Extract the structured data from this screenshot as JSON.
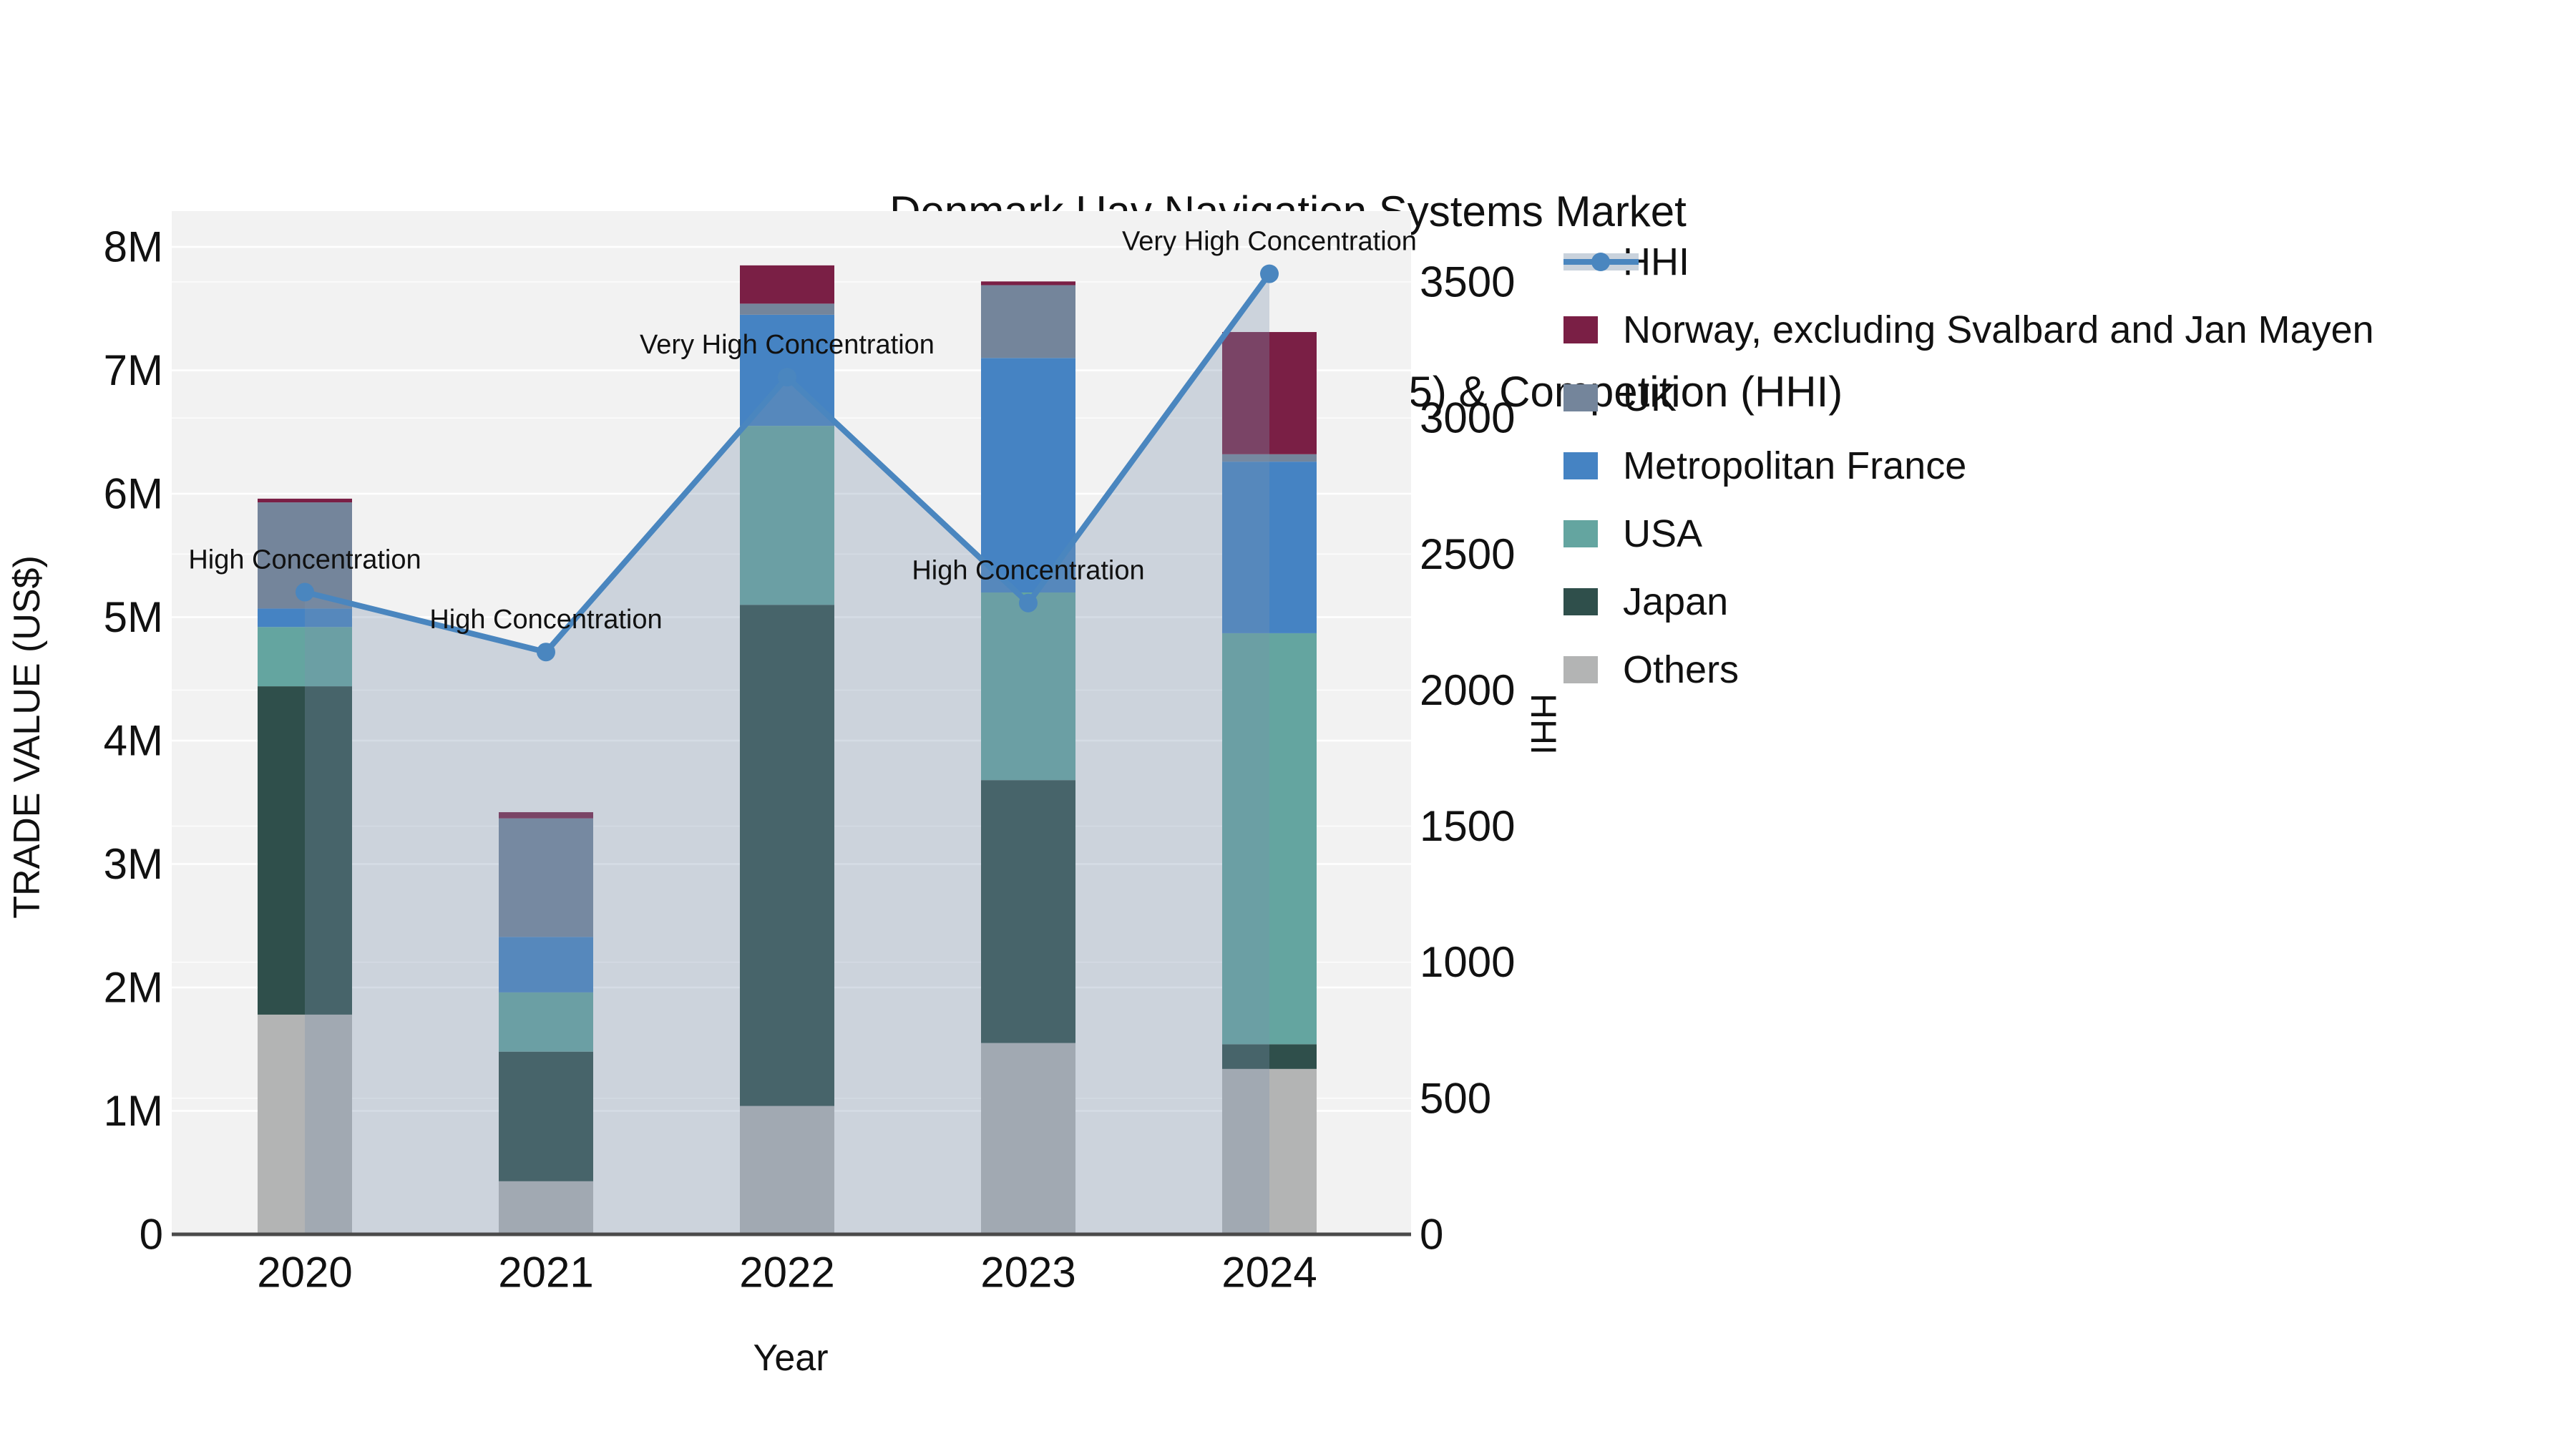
{
  "title": {
    "line1": "Denmark Uav Navigation Systems Market",
    "line2": "Import Shipment by Countries (Top 5) & Competition (HHI)"
  },
  "axes": {
    "y_left": {
      "label": "TRADE VALUE (US$)",
      "ticks": [
        "0",
        "1M",
        "2M",
        "3M",
        "4M",
        "5M",
        "6M",
        "7M",
        "8M"
      ]
    },
    "y_right": {
      "label": "HHI",
      "ticks": [
        "0",
        "500",
        "1000",
        "1500",
        "2000",
        "2500",
        "3000",
        "3500"
      ]
    },
    "x": {
      "label": "Year",
      "ticks": [
        "2020",
        "2021",
        "2022",
        "2023",
        "2024"
      ]
    }
  },
  "legend": [
    {
      "label": "HHI",
      "type": "line",
      "color": "#4a86bf"
    },
    {
      "label": "Norway, excluding Svalbard and Jan Mayen",
      "type": "swatch",
      "color": "#7a1f45"
    },
    {
      "label": "UK",
      "type": "swatch",
      "color": "#74859b"
    },
    {
      "label": "Metropolitan France",
      "type": "swatch",
      "color": "#4583c3"
    },
    {
      "label": "USA",
      "type": "swatch",
      "color": "#64a5a0"
    },
    {
      "label": "Japan",
      "type": "swatch",
      "color": "#2f4f4b"
    },
    {
      "label": "Others",
      "type": "swatch",
      "color": "#b3b4b4"
    }
  ],
  "colors": {
    "plot_background": "#f2f2f2",
    "gridline": "#ffffff",
    "axis_line": "#4a4a4a",
    "text": "#111111",
    "hhi_line": "#4a86bf",
    "hhi_area_fill": "rgba(125,145,175,0.32)"
  },
  "chart_data": {
    "type": "bar+line",
    "title": "Denmark Uav Navigation Systems Market Import Shipment by Countries (Top 5) & Competition (HHI)",
    "categories": [
      "2020",
      "2021",
      "2022",
      "2023",
      "2024"
    ],
    "bar_unit": "million US$",
    "stack_order_bottom_to_top": [
      "Others",
      "Japan",
      "USA",
      "Metropolitan France",
      "UK",
      "Norway, excluding Svalbard and Jan Mayen"
    ],
    "series": [
      {
        "name": "Norway, excluding Svalbard and Jan Mayen",
        "color": "#7a1f45",
        "values": [
          0.03,
          0.05,
          0.31,
          0.03,
          0.99
        ]
      },
      {
        "name": "UK",
        "color": "#74859b",
        "values": [
          0.86,
          0.96,
          0.09,
          0.59,
          0.06
        ]
      },
      {
        "name": "Metropolitan France",
        "color": "#4583c3",
        "values": [
          0.15,
          0.45,
          0.9,
          1.9,
          1.39
        ]
      },
      {
        "name": "USA",
        "color": "#64a5a0",
        "values": [
          0.48,
          0.48,
          1.45,
          1.52,
          3.33
        ]
      },
      {
        "name": "Japan",
        "color": "#2f4f4b",
        "values": [
          2.66,
          1.05,
          4.06,
          2.13,
          0.2
        ]
      },
      {
        "name": "Others",
        "color": "#b3b4b4",
        "values": [
          1.78,
          0.43,
          1.04,
          1.55,
          1.34
        ]
      }
    ],
    "bar_totals": [
      5.96,
      3.42,
      7.85,
      7.72,
      7.31
    ],
    "line_series": {
      "name": "HHI",
      "color": "#4a86bf",
      "values": [
        2360,
        2140,
        3150,
        2320,
        3530
      ],
      "area": true
    },
    "annotations": [
      {
        "x": "2020",
        "text": "High Concentration"
      },
      {
        "x": "2021",
        "text": "High Concentration"
      },
      {
        "x": "2022",
        "text": "Very High Concentration"
      },
      {
        "x": "2023",
        "text": "High Concentration"
      },
      {
        "x": "2024",
        "text": "Very High Concentration"
      }
    ],
    "xlabel": "Year",
    "ylabel_left": "TRADE VALUE (US$)",
    "ylabel_right": "HHI",
    "ylim_left": [
      0,
      8000000
    ],
    "ylim_right": [
      0,
      3500
    ],
    "grid": true,
    "legend_position": "right"
  }
}
